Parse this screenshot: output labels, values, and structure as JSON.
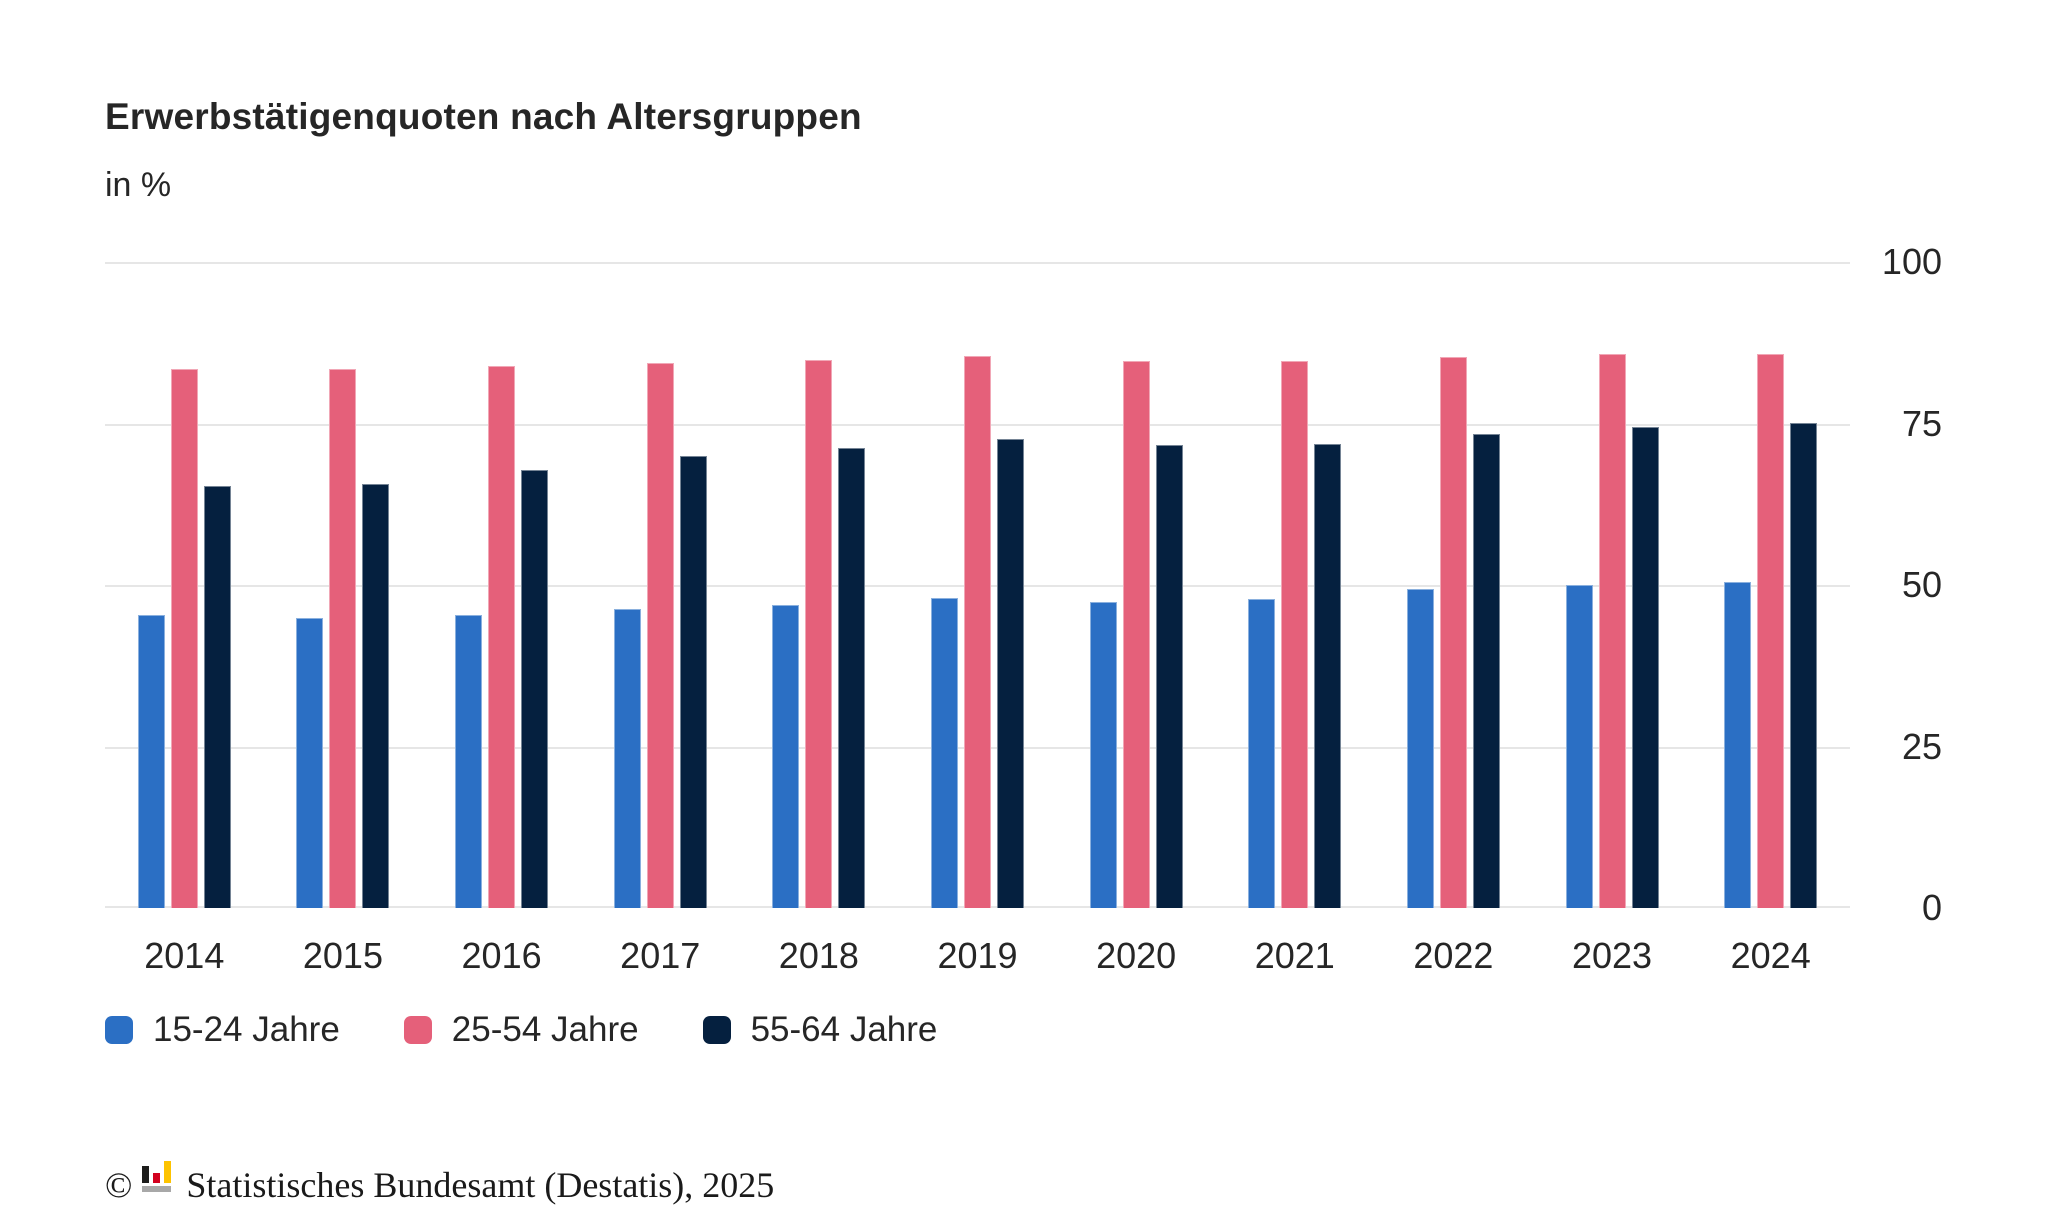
{
  "header": {
    "title": "Erwerbstätigenquoten nach Altersgruppen",
    "subtitle": "in %"
  },
  "chart_data": {
    "type": "bar",
    "title": "Erwerbstätigenquoten nach Altersgruppen",
    "subtitle": "in %",
    "categories": [
      "2014",
      "2015",
      "2016",
      "2017",
      "2018",
      "2019",
      "2020",
      "2021",
      "2022",
      "2023",
      "2024"
    ],
    "series": [
      {
        "name": "15-24 Jahre",
        "color": "#2b6fc4",
        "values": [
          45.4,
          44.9,
          45.3,
          46.3,
          46.9,
          48.0,
          47.4,
          47.8,
          49.4,
          50.0,
          50.4
        ]
      },
      {
        "name": "25-54 Jahre",
        "color": "#e5607a",
        "values": [
          83.5,
          83.5,
          83.9,
          84.4,
          84.9,
          85.5,
          84.6,
          84.7,
          85.3,
          85.7,
          85.8
        ]
      },
      {
        "name": "55-64 Jahre",
        "color": "#05203f",
        "values": [
          65.3,
          65.7,
          67.8,
          70.0,
          71.2,
          72.6,
          71.6,
          71.8,
          73.3,
          74.5,
          75.1
        ]
      }
    ],
    "xlabel": "",
    "ylabel": "in %",
    "ylim": [
      0,
      100
    ],
    "yticks": [
      0,
      25,
      50,
      75,
      100
    ],
    "grid": "horizontal",
    "axis_label_side": "right",
    "legend_position": "bottom-left",
    "gridline_color": "#e6e6e6",
    "text_color": "#262626"
  },
  "footer": {
    "copyright_symbol": "©",
    "source_text": "Statistisches Bundesamt (Destatis), 2025",
    "logo_colors": {
      "black": "#1d1d1b",
      "red": "#d2001e",
      "yellow": "#fdc300",
      "gray": "#a8a8a8"
    }
  }
}
